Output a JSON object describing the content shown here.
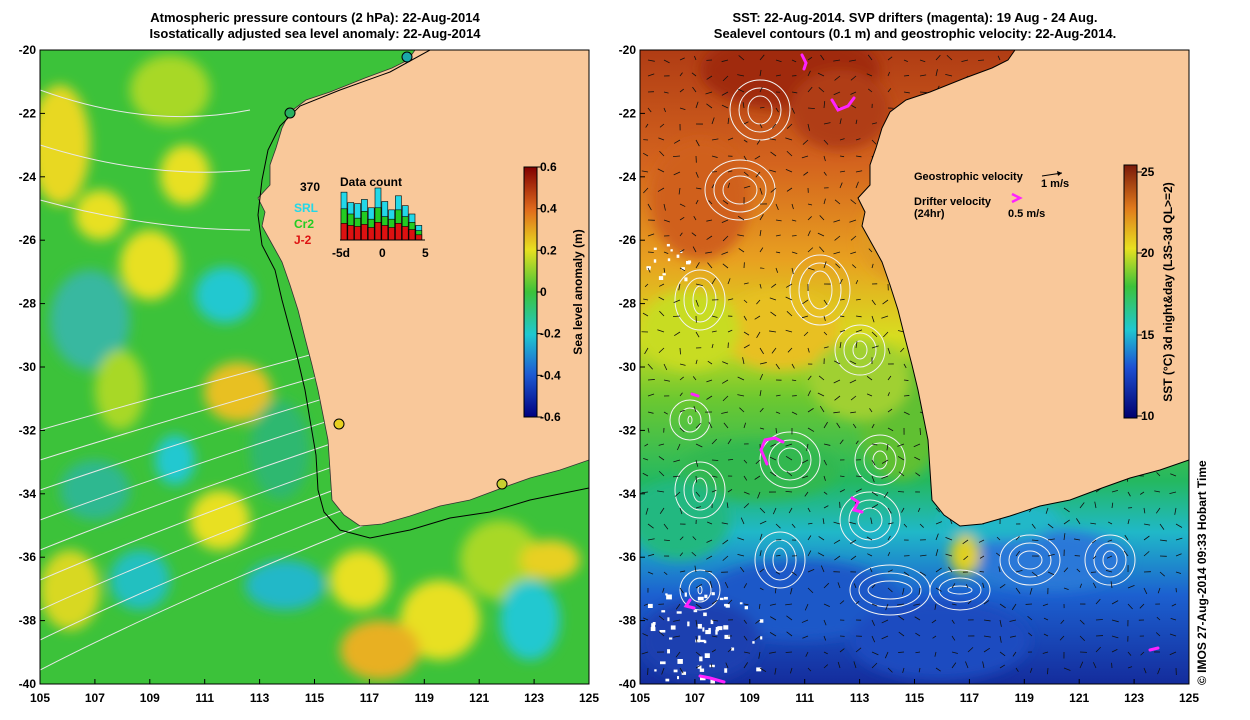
{
  "left_panel": {
    "title_line1": "Atmospheric pressure contours (2 hPa): 22-Aug-2014",
    "title_line2": "Isostatically adjusted sea level anomaly: 22-Aug-2014",
    "colorbar": {
      "label": "Sea level anomaly (m)",
      "ticks": [
        "0.6",
        "0.4",
        "0.2",
        "0",
        "-0.2",
        "-0.4",
        "-0.6"
      ]
    },
    "data_count": {
      "title": "Data count",
      "max_value": "370",
      "legend": [
        {
          "label": "SRL",
          "color": "#22d8e8"
        },
        {
          "label": "Cr2",
          "color": "#22cc22"
        },
        {
          "label": "J-2",
          "color": "#dd1111"
        }
      ],
      "x_ticks": [
        "-5d",
        "0",
        "5"
      ],
      "srl_heights": [
        0.92,
        0.72,
        0.7,
        0.78,
        0.62,
        1.0,
        0.74,
        0.58,
        0.85,
        0.66,
        0.5,
        0.28
      ],
      "cr2_heights": [
        0.6,
        0.5,
        0.42,
        0.55,
        0.4,
        0.62,
        0.45,
        0.4,
        0.58,
        0.45,
        0.34,
        0.18
      ],
      "j2_heights": [
        0.32,
        0.28,
        0.26,
        0.3,
        0.24,
        0.34,
        0.28,
        0.24,
        0.32,
        0.26,
        0.2,
        0.1
      ]
    }
  },
  "right_panel": {
    "title_line1": "SST: 22-Aug-2014. SVP drifters (magenta): 19 Aug - 24 Aug.",
    "title_line2": "Sealevel contours (0.1 m) and geostrophic velocity: 22-Aug-2014.",
    "colorbar": {
      "label": "SST (°C) 3d night&day (L3S-3d QL>=2)",
      "ticks": [
        "25",
        "20",
        "15",
        "10"
      ]
    },
    "legend": {
      "geostrophic_label": "Geostrophic velocity",
      "geostrophic_scale": "1 m/s",
      "drifter_label": "Drifter velocity",
      "drifter_sub": "(24hr)",
      "drifter_scale": "0.5 m/s"
    }
  },
  "axes": {
    "lat_ticks": [
      "-20",
      "-22",
      "-24",
      "-26",
      "-28",
      "-30",
      "-32",
      "-34",
      "-36",
      "-38",
      "-40"
    ],
    "lon_ticks": [
      "105",
      "107",
      "109",
      "111",
      "113",
      "115",
      "117",
      "119",
      "121",
      "123",
      "125"
    ]
  },
  "credit": "© IMOS 27-Aug-2014 09:33 Hobart Time",
  "colors": {
    "land": "#f9c89a",
    "ocean_green": "#3cc23a",
    "sst_hot": "#c0501c",
    "sst_cold": "#1c48c8",
    "drifter": "#ff22ff"
  }
}
